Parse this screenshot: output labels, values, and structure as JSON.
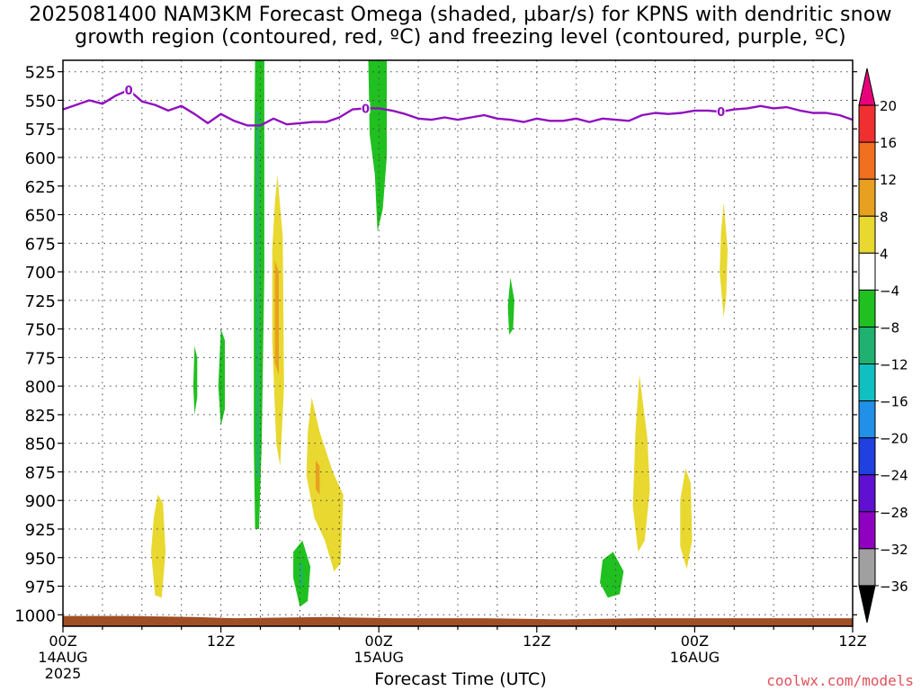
{
  "title": {
    "line1": "2025081400 NAM3KM Forecast Omega (shaded, µbar/s) for KPNS with dendritic snow",
    "line2": "growth region (contoured, red, ºC) and freezing level (contoured, purple, ºC)"
  },
  "xlabel": "Forecast Time (UTC)",
  "credit": "coolwx.com/models",
  "chart_data": {
    "type": "heatmap",
    "y_axis": {
      "label": "",
      "scale": "pressure (inverted)",
      "range": [
        515,
        1010
      ],
      "ticks": [
        525,
        550,
        575,
        600,
        625,
        650,
        675,
        700,
        725,
        750,
        775,
        800,
        825,
        850,
        875,
        900,
        925,
        950,
        975,
        1000
      ]
    },
    "x_axis": {
      "range_hours": [
        0,
        60
      ],
      "ticks": [
        {
          "hour": 0,
          "label": "00Z",
          "sub1": "14AUG",
          "sub2": "2025"
        },
        {
          "hour": 12,
          "label": "12Z",
          "sub1": "",
          "sub2": ""
        },
        {
          "hour": 24,
          "label": "00Z",
          "sub1": "15AUG",
          "sub2": ""
        },
        {
          "hour": 36,
          "label": "12Z",
          "sub1": "",
          "sub2": ""
        },
        {
          "hour": 48,
          "label": "00Z",
          "sub1": "16AUG",
          "sub2": ""
        },
        {
          "hour": 60,
          "label": "12Z",
          "sub1": "",
          "sub2": ""
        }
      ]
    },
    "grid": true,
    "colorbar": {
      "placement": "right",
      "levels": [
        "20",
        "16",
        "12",
        "8",
        "4",
        "−4",
        "−8",
        "−12",
        "−16",
        "−20",
        "−24",
        "−28",
        "−32",
        "−36"
      ],
      "colors": [
        "#e8007a",
        "#f03030",
        "#f07020",
        "#e8a020",
        "#e8d830",
        "#ffffff",
        "#20c020",
        "#20b070",
        "#10c0c0",
        "#2090e8",
        "#2040e0",
        "#6010d0",
        "#9000c0",
        "#a0a0a0",
        "#000000"
      ]
    },
    "freezing_level": {
      "color": "#9010c0",
      "label": "0",
      "label_hours": [
        5,
        23,
        50
      ],
      "points": [
        [
          0,
          558
        ],
        [
          1,
          554
        ],
        [
          2,
          550
        ],
        [
          3,
          553
        ],
        [
          4,
          546
        ],
        [
          5,
          541
        ],
        [
          6,
          551
        ],
        [
          7,
          554
        ],
        [
          8,
          559
        ],
        [
          9,
          555
        ],
        [
          10,
          562
        ],
        [
          11,
          570
        ],
        [
          12,
          562
        ],
        [
          13,
          568
        ],
        [
          14,
          572
        ],
        [
          15,
          572
        ],
        [
          16,
          566
        ],
        [
          17,
          571
        ],
        [
          18,
          570
        ],
        [
          19,
          569
        ],
        [
          20,
          569
        ],
        [
          21,
          565
        ],
        [
          22,
          558
        ],
        [
          23,
          557
        ],
        [
          24,
          557
        ],
        [
          25,
          559
        ],
        [
          26,
          562
        ],
        [
          27,
          566
        ],
        [
          28,
          567
        ],
        [
          29,
          565
        ],
        [
          30,
          567
        ],
        [
          31,
          565
        ],
        [
          32,
          563
        ],
        [
          33,
          566
        ],
        [
          34,
          567
        ],
        [
          35,
          569
        ],
        [
          36,
          566
        ],
        [
          37,
          568
        ],
        [
          38,
          568
        ],
        [
          39,
          566
        ],
        [
          40,
          569
        ],
        [
          41,
          566
        ],
        [
          42,
          567
        ],
        [
          43,
          568
        ],
        [
          44,
          563
        ],
        [
          45,
          561
        ],
        [
          46,
          562
        ],
        [
          47,
          561
        ],
        [
          48,
          559
        ],
        [
          49,
          559
        ],
        [
          50,
          560
        ],
        [
          51,
          558
        ],
        [
          52,
          557
        ],
        [
          53,
          555
        ],
        [
          54,
          557
        ],
        [
          55,
          556
        ],
        [
          56,
          559
        ],
        [
          57,
          561
        ],
        [
          58,
          561
        ],
        [
          59,
          563
        ],
        [
          60,
          567
        ]
      ]
    },
    "omega_regions": [
      {
        "level": "-8",
        "color": "#20c020",
        "points": [
          [
            14.6,
            515
          ],
          [
            15.3,
            515
          ],
          [
            15.3,
            700
          ],
          [
            15.1,
            850
          ],
          [
            14.9,
            925
          ],
          [
            14.6,
            925
          ],
          [
            14.5,
            850
          ],
          [
            14.5,
            650
          ]
        ]
      },
      {
        "level": "-12",
        "color": "#20b070",
        "points": [
          [
            14.7,
            560
          ],
          [
            14.9,
            560
          ],
          [
            14.9,
            880
          ],
          [
            14.7,
            880
          ]
        ]
      },
      {
        "level": "-8",
        "color": "#20c020",
        "points": [
          [
            23.2,
            515
          ],
          [
            24.6,
            515
          ],
          [
            24.6,
            600
          ],
          [
            24.3,
            645
          ],
          [
            23.9,
            665
          ],
          [
            23.7,
            615
          ],
          [
            23.3,
            580
          ]
        ]
      },
      {
        "level": "-8",
        "color": "#20c020",
        "points": [
          [
            12.0,
            750
          ],
          [
            12.3,
            760
          ],
          [
            12.3,
            820
          ],
          [
            12.0,
            835
          ],
          [
            11.8,
            800
          ]
        ]
      },
      {
        "level": "-8",
        "color": "#20c020",
        "points": [
          [
            10.0,
            765
          ],
          [
            10.2,
            775
          ],
          [
            10.2,
            810
          ],
          [
            10.0,
            825
          ],
          [
            9.9,
            800
          ]
        ]
      },
      {
        "level": "-8",
        "color": "#20c020",
        "points": [
          [
            17.5,
            945
          ],
          [
            18.2,
            935
          ],
          [
            18.8,
            958
          ],
          [
            18.6,
            988
          ],
          [
            18.0,
            993
          ],
          [
            17.5,
            968
          ]
        ]
      },
      {
        "level": "-12",
        "color": "#20b070",
        "points": [
          [
            18.0,
            955
          ],
          [
            18.2,
            955
          ],
          [
            18.2,
            975
          ],
          [
            18.0,
            975
          ]
        ]
      },
      {
        "level": "-8",
        "color": "#20c020",
        "points": [
          [
            34.0,
            705
          ],
          [
            34.3,
            725
          ],
          [
            34.2,
            750
          ],
          [
            33.9,
            755
          ],
          [
            33.8,
            730
          ]
        ]
      },
      {
        "level": "-8",
        "color": "#20c020",
        "points": [
          [
            41.0,
            952
          ],
          [
            41.8,
            945
          ],
          [
            42.6,
            962
          ],
          [
            42.3,
            982
          ],
          [
            41.4,
            985
          ],
          [
            40.8,
            972
          ]
        ]
      },
      {
        "level": "4",
        "color": "#e8d830",
        "points": [
          [
            16.3,
            615
          ],
          [
            16.7,
            670
          ],
          [
            16.8,
            800
          ],
          [
            16.5,
            870
          ],
          [
            16.2,
            850
          ],
          [
            15.9,
            760
          ],
          [
            15.9,
            680
          ],
          [
            16.1,
            640
          ]
        ]
      },
      {
        "level": "8",
        "color": "#e8a020",
        "points": [
          [
            16.1,
            690
          ],
          [
            16.4,
            700
          ],
          [
            16.4,
            790
          ],
          [
            16.1,
            780
          ]
        ]
      },
      {
        "level": "4",
        "color": "#e8d830",
        "points": [
          [
            18.9,
            810
          ],
          [
            19.5,
            840
          ],
          [
            20.5,
            875
          ],
          [
            21.3,
            895
          ],
          [
            21.1,
            955
          ],
          [
            20.6,
            962
          ],
          [
            19.9,
            935
          ],
          [
            19.1,
            915
          ],
          [
            18.5,
            878
          ],
          [
            18.6,
            840
          ]
        ]
      },
      {
        "level": "8",
        "color": "#e8a020",
        "points": [
          [
            19.2,
            865
          ],
          [
            19.5,
            870
          ],
          [
            19.5,
            895
          ],
          [
            19.2,
            890
          ]
        ]
      },
      {
        "level": "4",
        "color": "#e8d830",
        "points": [
          [
            7.2,
            895
          ],
          [
            7.6,
            902
          ],
          [
            7.8,
            945
          ],
          [
            7.5,
            985
          ],
          [
            7.0,
            983
          ],
          [
            6.7,
            945
          ],
          [
            6.9,
            915
          ]
        ]
      },
      {
        "level": "4",
        "color": "#e8d830",
        "points": [
          [
            43.8,
            790
          ],
          [
            44.4,
            845
          ],
          [
            44.6,
            890
          ],
          [
            44.2,
            935
          ],
          [
            43.7,
            945
          ],
          [
            43.3,
            905
          ],
          [
            43.5,
            840
          ]
        ]
      },
      {
        "level": "4",
        "color": "#e8d830",
        "points": [
          [
            47.3,
            872
          ],
          [
            47.7,
            885
          ],
          [
            47.8,
            935
          ],
          [
            47.4,
            960
          ],
          [
            46.9,
            940
          ],
          [
            46.9,
            900
          ]
        ]
      },
      {
        "level": "4",
        "color": "#e8d830",
        "points": [
          [
            50.2,
            640
          ],
          [
            50.5,
            680
          ],
          [
            50.4,
            720
          ],
          [
            50.2,
            740
          ],
          [
            49.9,
            700
          ],
          [
            50.0,
            665
          ]
        ]
      }
    ],
    "surface": {
      "color": "#a04e25",
      "pressure": 1005,
      "points": [
        [
          0,
          1001
        ],
        [
          5,
          1001
        ],
        [
          10,
          1002
        ],
        [
          13,
          1003
        ],
        [
          20,
          1002
        ],
        [
          25,
          1003
        ],
        [
          32,
          1003
        ],
        [
          38,
          1004
        ],
        [
          44,
          1003
        ],
        [
          50,
          1003
        ],
        [
          56,
          1003
        ],
        [
          60,
          1003
        ]
      ]
    }
  }
}
